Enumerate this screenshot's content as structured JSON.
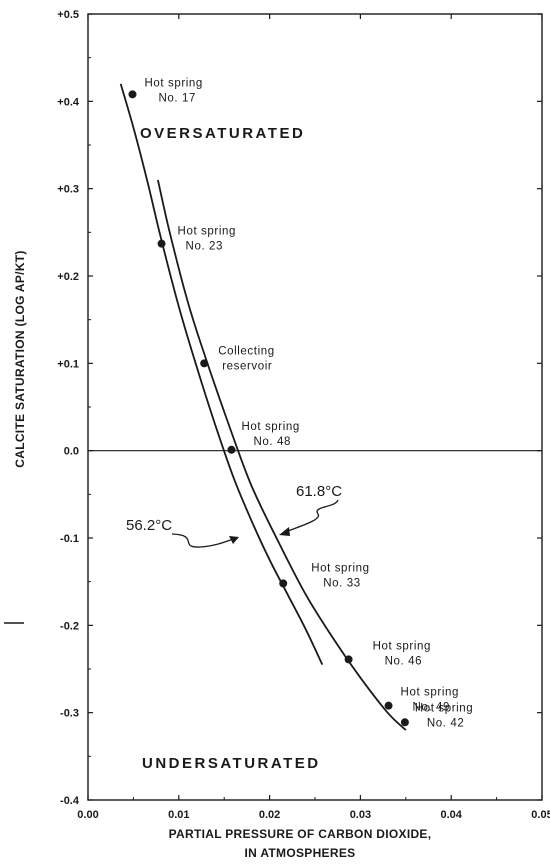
{
  "chart_data": {
    "type": "line",
    "xlabel": [
      "PARTIAL PRESSURE OF CARBON DIOXIDE,",
      "IN ATMOSPHERES"
    ],
    "ylabel": "CALCITE SATURATION (LOG AP/KT)",
    "xlim": [
      0.0,
      0.05
    ],
    "ylim": [
      -0.4,
      0.5
    ],
    "x_ticks": [
      0.0,
      0.01,
      0.02,
      0.03,
      0.04,
      0.05
    ],
    "x_tick_labels": [
      "0.00",
      "0.01",
      "0.02",
      "0.03",
      "0.04",
      "0.05"
    ],
    "y_ticks": [
      0.5,
      0.4,
      0.3,
      0.2,
      0.1,
      0.0,
      -0.1,
      -0.2,
      -0.3,
      -0.4
    ],
    "y_tick_labels": [
      "+0.5",
      "+0.4",
      "+0.3",
      "+0.2",
      "+0.1",
      "0.0",
      "-0.1",
      "-0.2",
      "-0.3",
      "-0.4"
    ],
    "grid": false,
    "series": [
      {
        "name": "56.2°C",
        "x": [
          0.0036,
          0.005,
          0.0065,
          0.008,
          0.01,
          0.012,
          0.014,
          0.016,
          0.018,
          0.02,
          0.022,
          0.024,
          0.0258
        ],
        "y": [
          0.42,
          0.37,
          0.31,
          0.245,
          0.165,
          0.095,
          0.03,
          -0.03,
          -0.08,
          -0.125,
          -0.165,
          -0.205,
          -0.245
        ]
      },
      {
        "name": "61.8°C",
        "x": [
          0.0077,
          0.009,
          0.011,
          0.013,
          0.0155,
          0.018,
          0.021,
          0.024,
          0.027,
          0.03,
          0.033,
          0.035
        ],
        "y": [
          0.31,
          0.25,
          0.17,
          0.105,
          0.03,
          -0.04,
          -0.105,
          -0.165,
          -0.215,
          -0.26,
          -0.3,
          -0.32
        ]
      }
    ],
    "points": [
      {
        "label": [
          "Hot spring",
          "No. 17"
        ],
        "x": 0.0049,
        "y": 0.408
      },
      {
        "label": [
          "Hot spring",
          "No. 23"
        ],
        "x": 0.0081,
        "y": 0.237
      },
      {
        "label": [
          "Collecting",
          "reservoir"
        ],
        "x": 0.0128,
        "y": 0.1
      },
      {
        "label": [
          "Hot spring",
          "No. 48"
        ],
        "x": 0.0158,
        "y": 0.001
      },
      {
        "label": [
          "Hot spring",
          "No. 33"
        ],
        "x": 0.0215,
        "y": -0.152
      },
      {
        "label": [
          "Hot spring",
          "No. 46"
        ],
        "x": 0.0287,
        "y": -0.239
      },
      {
        "label": [
          "Hot spring",
          "No. 49"
        ],
        "x": 0.0331,
        "y": -0.292
      },
      {
        "label": [
          "Hot spring",
          "No. 42"
        ],
        "x": 0.0349,
        "y": -0.311
      }
    ],
    "regions": [
      "OVERSATURATED",
      "UNDERSATURATED"
    ]
  }
}
